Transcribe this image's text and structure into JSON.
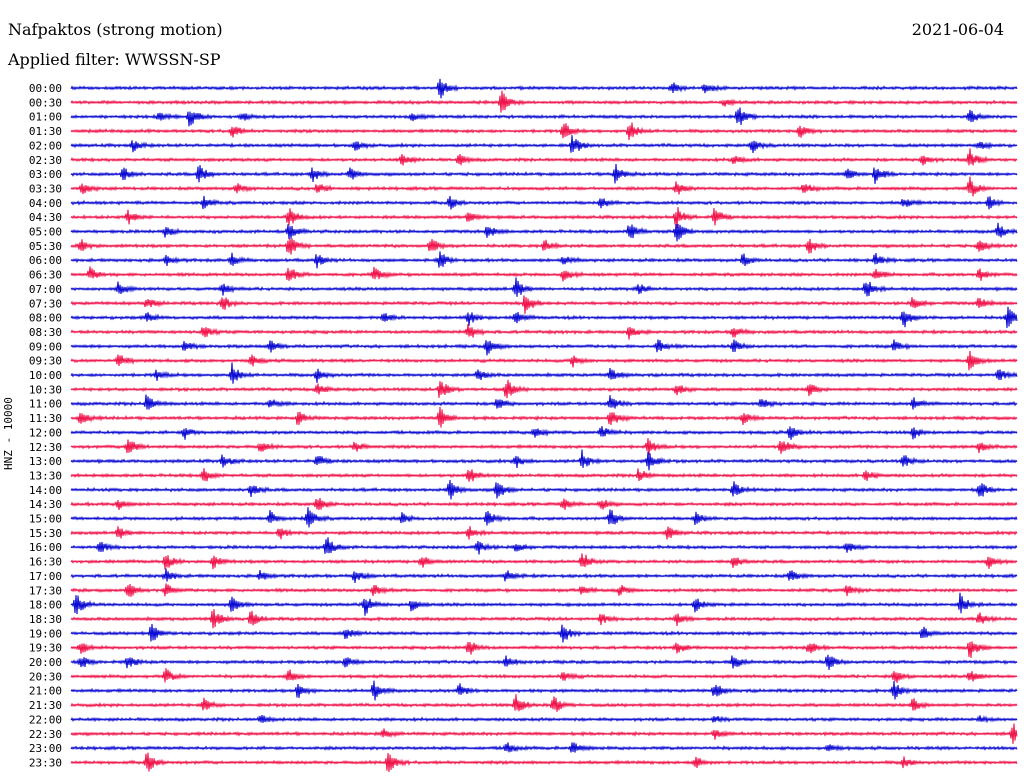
{
  "header": {
    "station": "Nafpaktos (strong motion)",
    "date": "2021-06-04",
    "filter": "Applied filter: WWSSN-SP"
  },
  "channel_label": "HNZ - 10000",
  "colors": {
    "odd_trace": "#0a0ad2",
    "even_trace": "#f0144b",
    "text": "#000000"
  },
  "chart_data": {
    "type": "line",
    "title": "",
    "xlabel": "",
    "ylabel": "HNZ - 10000",
    "grid": false,
    "legend": "none",
    "traces": [
      {
        "label": "00:00",
        "events": [
          [
            0.39,
            1.0
          ],
          [
            0.635,
            0.5
          ],
          [
            0.67,
            0.5
          ]
        ]
      },
      {
        "label": "00:30",
        "events": [
          [
            0.455,
            1.0
          ],
          [
            0.69,
            0.3
          ]
        ]
      },
      {
        "label": "01:00",
        "events": [
          [
            0.093,
            0.4
          ],
          [
            0.125,
            1.0
          ],
          [
            0.18,
            0.4
          ],
          [
            0.36,
            0.4
          ],
          [
            0.705,
            1.0
          ],
          [
            0.95,
            0.6
          ]
        ]
      },
      {
        "label": "01:30",
        "events": [
          [
            0.17,
            0.6
          ],
          [
            0.52,
            1.0
          ],
          [
            0.59,
            1.0
          ],
          [
            0.77,
            0.8
          ]
        ]
      },
      {
        "label": "02:00",
        "events": [
          [
            0.065,
            0.5
          ],
          [
            0.3,
            0.5
          ],
          [
            0.53,
            1.0
          ],
          [
            0.72,
            0.6
          ],
          [
            0.96,
            0.4
          ]
        ]
      },
      {
        "label": "02:30",
        "events": [
          [
            0.35,
            0.6
          ],
          [
            0.41,
            0.5
          ],
          [
            0.7,
            0.4
          ],
          [
            0.9,
            0.5
          ],
          [
            0.95,
            1.0
          ]
        ]
      },
      {
        "label": "03:00",
        "events": [
          [
            0.055,
            0.6
          ],
          [
            0.135,
            0.9
          ],
          [
            0.255,
            0.7
          ],
          [
            0.295,
            0.6
          ],
          [
            0.575,
            0.9
          ],
          [
            0.82,
            0.6
          ],
          [
            0.85,
            0.8
          ]
        ]
      },
      {
        "label": "03:30",
        "events": [
          [
            0.012,
            0.5
          ],
          [
            0.175,
            0.5
          ],
          [
            0.26,
            0.5
          ],
          [
            0.64,
            0.6
          ],
          [
            0.775,
            0.6
          ],
          [
            0.95,
            1.0
          ]
        ]
      },
      {
        "label": "04:00",
        "events": [
          [
            0.14,
            0.5
          ],
          [
            0.4,
            0.6
          ],
          [
            0.56,
            0.5
          ],
          [
            0.88,
            0.5
          ],
          [
            0.97,
            0.6
          ]
        ]
      },
      {
        "label": "04:30",
        "events": [
          [
            0.06,
            0.6
          ],
          [
            0.23,
            1.0
          ],
          [
            0.42,
            0.5
          ],
          [
            0.64,
            1.0
          ],
          [
            0.68,
            0.9
          ]
        ]
      },
      {
        "label": "05:00",
        "events": [
          [
            0.1,
            0.5
          ],
          [
            0.23,
            0.8
          ],
          [
            0.44,
            0.6
          ],
          [
            0.59,
            0.9
          ],
          [
            0.64,
            1.0
          ],
          [
            0.98,
            0.7
          ]
        ]
      },
      {
        "label": "05:30",
        "events": [
          [
            0.01,
            0.6
          ],
          [
            0.23,
            1.0
          ],
          [
            0.38,
            0.8
          ],
          [
            0.5,
            0.6
          ],
          [
            0.78,
            0.8
          ],
          [
            0.96,
            0.6
          ]
        ]
      },
      {
        "label": "06:00",
        "events": [
          [
            0.1,
            0.5
          ],
          [
            0.17,
            0.6
          ],
          [
            0.26,
            0.6
          ],
          [
            0.39,
            0.8
          ],
          [
            0.52,
            0.5
          ],
          [
            0.71,
            0.6
          ],
          [
            0.85,
            0.6
          ]
        ]
      },
      {
        "label": "06:30",
        "events": [
          [
            0.02,
            0.6
          ],
          [
            0.23,
            0.8
          ],
          [
            0.32,
            0.7
          ],
          [
            0.52,
            0.6
          ],
          [
            0.85,
            0.7
          ],
          [
            0.96,
            0.6
          ]
        ]
      },
      {
        "label": "07:00",
        "events": [
          [
            0.05,
            0.6
          ],
          [
            0.16,
            0.5
          ],
          [
            0.47,
            1.0
          ],
          [
            0.6,
            0.5
          ],
          [
            0.84,
            1.0
          ]
        ]
      },
      {
        "label": "07:30",
        "events": [
          [
            0.08,
            0.5
          ],
          [
            0.16,
            0.7
          ],
          [
            0.48,
            1.0
          ],
          [
            0.89,
            0.7
          ],
          [
            0.96,
            0.6
          ]
        ]
      },
      {
        "label": "08:00",
        "events": [
          [
            0.08,
            0.5
          ],
          [
            0.33,
            0.6
          ],
          [
            0.42,
            0.7
          ],
          [
            0.47,
            0.6
          ],
          [
            0.88,
            1.0
          ],
          [
            0.99,
            1.0
          ]
        ]
      },
      {
        "label": "08:30",
        "events": [
          [
            0.14,
            0.6
          ],
          [
            0.42,
            0.8
          ],
          [
            0.59,
            0.6
          ],
          [
            0.7,
            0.6
          ]
        ]
      },
      {
        "label": "09:00",
        "events": [
          [
            0.12,
            0.5
          ],
          [
            0.21,
            0.6
          ],
          [
            0.44,
            0.8
          ],
          [
            0.62,
            0.7
          ],
          [
            0.7,
            0.6
          ],
          [
            0.87,
            0.5
          ]
        ]
      },
      {
        "label": "09:30",
        "events": [
          [
            0.05,
            0.6
          ],
          [
            0.19,
            0.5
          ],
          [
            0.53,
            0.6
          ],
          [
            0.95,
            0.9
          ]
        ]
      },
      {
        "label": "10:00",
        "events": [
          [
            0.09,
            0.5
          ],
          [
            0.17,
            1.0
          ],
          [
            0.26,
            0.6
          ],
          [
            0.43,
            0.6
          ],
          [
            0.57,
            0.6
          ],
          [
            0.98,
            0.6
          ]
        ]
      },
      {
        "label": "10:30",
        "events": [
          [
            0.26,
            0.6
          ],
          [
            0.39,
            1.0
          ],
          [
            0.46,
            1.0
          ],
          [
            0.64,
            0.6
          ],
          [
            0.78,
            0.6
          ]
        ]
      },
      {
        "label": "11:00",
        "events": [
          [
            0.08,
            0.9
          ],
          [
            0.21,
            0.5
          ],
          [
            0.45,
            0.6
          ],
          [
            0.57,
            0.8
          ],
          [
            0.73,
            0.6
          ],
          [
            0.89,
            0.6
          ]
        ]
      },
      {
        "label": "11:30",
        "events": [
          [
            0.01,
            0.6
          ],
          [
            0.24,
            0.7
          ],
          [
            0.39,
            1.0
          ],
          [
            0.57,
            1.0
          ],
          [
            0.71,
            0.6
          ]
        ]
      },
      {
        "label": "12:00",
        "events": [
          [
            0.12,
            0.6
          ],
          [
            0.49,
            0.6
          ],
          [
            0.56,
            0.7
          ],
          [
            0.76,
            0.7
          ],
          [
            0.89,
            0.6
          ]
        ]
      },
      {
        "label": "12:30",
        "events": [
          [
            0.06,
            1.0
          ],
          [
            0.2,
            0.5
          ],
          [
            0.3,
            0.5
          ],
          [
            0.61,
            0.8
          ],
          [
            0.75,
            0.9
          ],
          [
            0.96,
            0.5
          ]
        ]
      },
      {
        "label": "13:00",
        "events": [
          [
            0.16,
            0.6
          ],
          [
            0.26,
            0.6
          ],
          [
            0.47,
            0.6
          ],
          [
            0.54,
            0.9
          ],
          [
            0.61,
            1.0
          ],
          [
            0.88,
            0.6
          ]
        ]
      },
      {
        "label": "13:30",
        "events": [
          [
            0.14,
            0.7
          ],
          [
            0.42,
            0.9
          ],
          [
            0.6,
            0.7
          ],
          [
            0.84,
            0.5
          ]
        ]
      },
      {
        "label": "14:00",
        "events": [
          [
            0.19,
            0.6
          ],
          [
            0.4,
            1.0
          ],
          [
            0.45,
            1.0
          ],
          [
            0.7,
            0.7
          ],
          [
            0.96,
            0.8
          ]
        ]
      },
      {
        "label": "14:30",
        "events": [
          [
            0.05,
            0.5
          ],
          [
            0.26,
            0.8
          ],
          [
            0.52,
            0.6
          ],
          [
            0.56,
            0.6
          ]
        ]
      },
      {
        "label": "15:00",
        "events": [
          [
            0.21,
            0.7
          ],
          [
            0.25,
            1.0
          ],
          [
            0.35,
            0.5
          ],
          [
            0.44,
            0.8
          ],
          [
            0.57,
            0.9
          ],
          [
            0.66,
            0.6
          ]
        ]
      },
      {
        "label": "15:30",
        "events": [
          [
            0.05,
            0.6
          ],
          [
            0.22,
            0.6
          ],
          [
            0.42,
            0.6
          ],
          [
            0.63,
            0.6
          ]
        ]
      },
      {
        "label": "16:00",
        "events": [
          [
            0.03,
            0.6
          ],
          [
            0.27,
            1.0
          ],
          [
            0.43,
            0.6
          ],
          [
            0.47,
            0.5
          ],
          [
            0.82,
            0.5
          ]
        ]
      },
      {
        "label": "16:30",
        "events": [
          [
            0.1,
            0.7
          ],
          [
            0.15,
            0.6
          ],
          [
            0.37,
            0.6
          ],
          [
            0.54,
            0.9
          ],
          [
            0.7,
            0.6
          ],
          [
            0.97,
            0.6
          ]
        ]
      },
      {
        "label": "17:00",
        "events": [
          [
            0.1,
            0.6
          ],
          [
            0.2,
            0.5
          ],
          [
            0.3,
            0.7
          ],
          [
            0.46,
            0.6
          ],
          [
            0.76,
            0.6
          ]
        ]
      },
      {
        "label": "17:30",
        "events": [
          [
            0.06,
            0.8
          ],
          [
            0.1,
            0.6
          ],
          [
            0.32,
            0.6
          ],
          [
            0.54,
            0.5
          ],
          [
            0.58,
            0.5
          ],
          [
            0.82,
            0.5
          ]
        ]
      },
      {
        "label": "18:00",
        "events": [
          [
            0.005,
            1.0
          ],
          [
            0.17,
            0.8
          ],
          [
            0.31,
            1.0
          ],
          [
            0.36,
            0.6
          ],
          [
            0.66,
            0.7
          ],
          [
            0.94,
            1.0
          ]
        ]
      },
      {
        "label": "18:30",
        "events": [
          [
            0.15,
            1.0
          ],
          [
            0.19,
            0.7
          ],
          [
            0.56,
            0.5
          ],
          [
            0.64,
            0.6
          ],
          [
            0.96,
            0.6
          ]
        ]
      },
      {
        "label": "19:00",
        "events": [
          [
            0.085,
            0.9
          ],
          [
            0.29,
            0.6
          ],
          [
            0.52,
            0.9
          ],
          [
            0.9,
            0.6
          ]
        ]
      },
      {
        "label": "19:30",
        "events": [
          [
            0.01,
            0.6
          ],
          [
            0.42,
            0.8
          ],
          [
            0.64,
            0.6
          ],
          [
            0.78,
            0.6
          ],
          [
            0.95,
            1.0
          ]
        ]
      },
      {
        "label": "20:00",
        "events": [
          [
            0.01,
            0.6
          ],
          [
            0.06,
            0.6
          ],
          [
            0.29,
            0.5
          ],
          [
            0.46,
            0.5
          ],
          [
            0.7,
            0.8
          ],
          [
            0.8,
            0.8
          ]
        ]
      },
      {
        "label": "20:30",
        "events": [
          [
            0.1,
            0.7
          ],
          [
            0.23,
            0.6
          ],
          [
            0.52,
            0.5
          ],
          [
            0.87,
            0.7
          ],
          [
            0.95,
            0.6
          ]
        ]
      },
      {
        "label": "21:00",
        "events": [
          [
            0.24,
            0.7
          ],
          [
            0.32,
            1.0
          ],
          [
            0.41,
            0.6
          ],
          [
            0.68,
            0.7
          ],
          [
            0.87,
            0.8
          ]
        ]
      },
      {
        "label": "21:30",
        "events": [
          [
            0.14,
            0.6
          ],
          [
            0.47,
            1.0
          ],
          [
            0.51,
            0.9
          ],
          [
            0.89,
            0.6
          ]
        ]
      },
      {
        "label": "22:00",
        "events": [
          [
            0.2,
            0.4
          ],
          [
            0.68,
            0.3
          ],
          [
            0.96,
            0.3
          ]
        ]
      },
      {
        "label": "22:30",
        "events": [
          [
            0.33,
            0.5
          ],
          [
            0.68,
            0.5
          ],
          [
            0.995,
            1.0
          ]
        ]
      },
      {
        "label": "23:00",
        "events": [
          [
            0.46,
            0.6
          ],
          [
            0.53,
            0.7
          ],
          [
            0.8,
            0.4
          ]
        ]
      },
      {
        "label": "23:30",
        "events": [
          [
            0.08,
            1.0
          ],
          [
            0.335,
            1.0
          ],
          [
            0.66,
            0.6
          ],
          [
            0.88,
            0.5
          ]
        ]
      }
    ]
  }
}
